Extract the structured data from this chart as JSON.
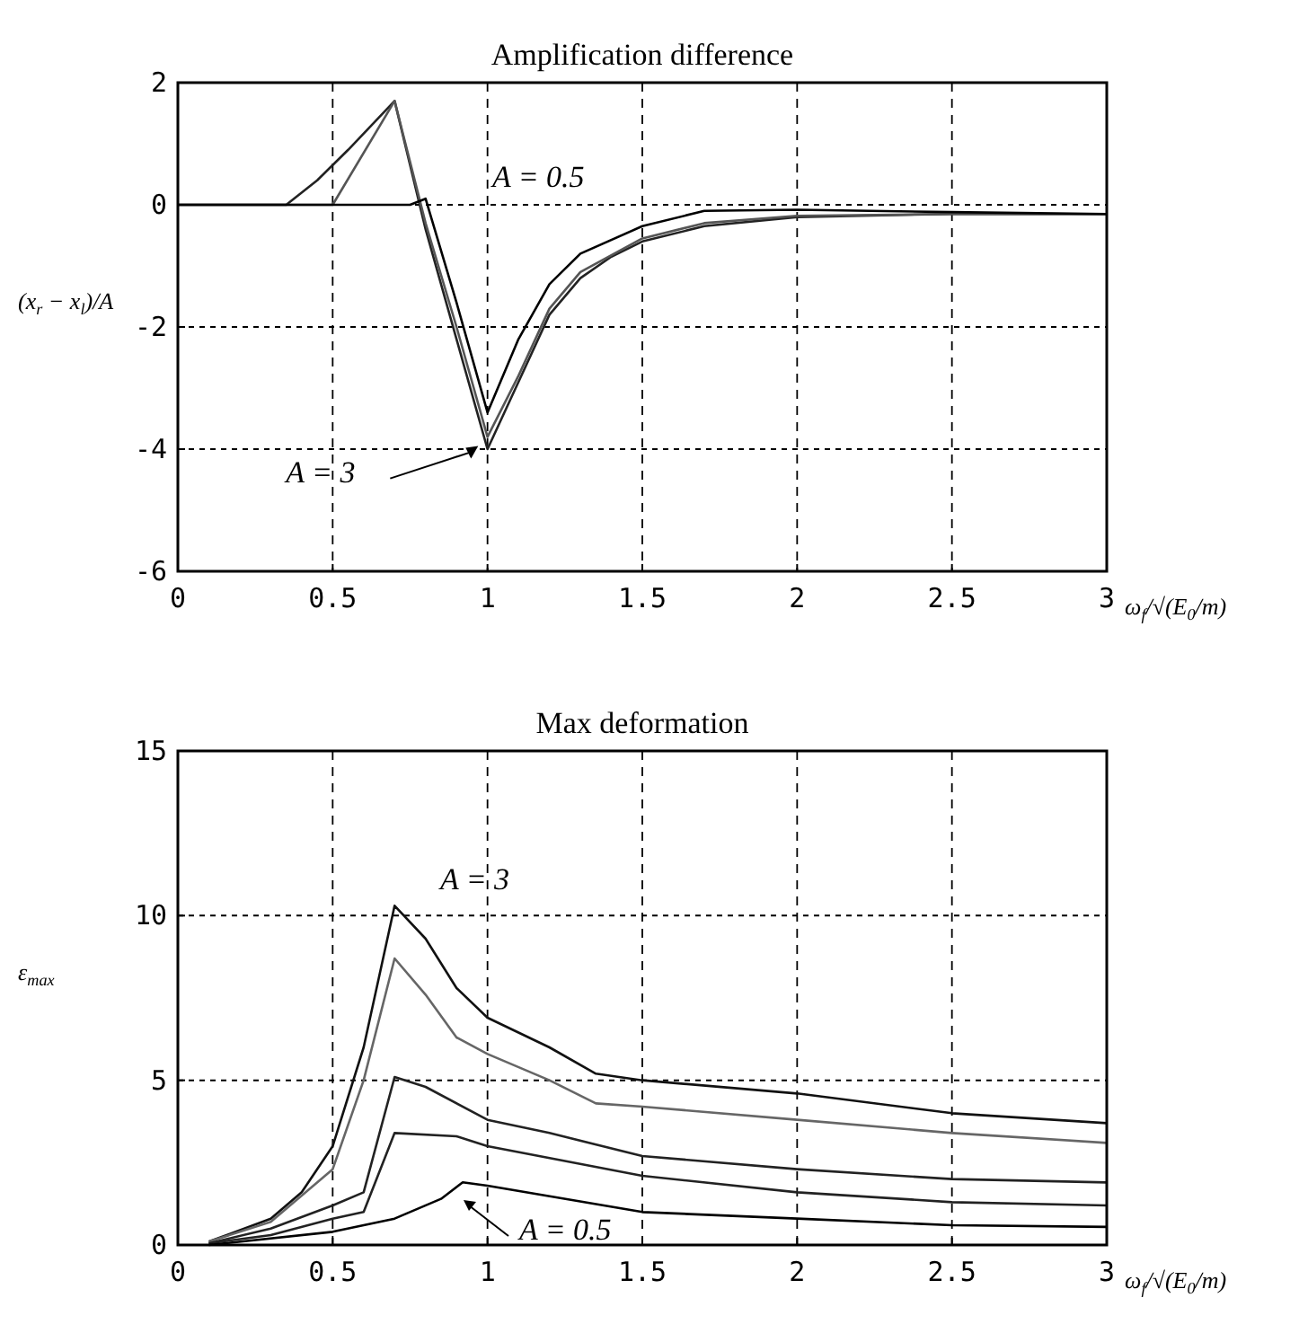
{
  "chart_data": [
    {
      "type": "line",
      "title": "Amplification difference",
      "xlabel": "ω$_{f}$/√(E$_{0}$/m)",
      "ylabel": "(x$_{r}$ − x$_{l}$)/A",
      "xlim": [
        0,
        3
      ],
      "ylim": [
        -6,
        2
      ],
      "xticks": [
        0,
        0.5,
        1,
        1.5,
        2,
        2.5,
        3
      ],
      "yticks": [
        -6,
        -4,
        -2,
        0,
        2
      ],
      "grid": true,
      "line_style": "solid",
      "marker": "none",
      "annotations": [
        "A = 0.5",
        {
          "text": "A = 3",
          "x": 0.97,
          "y": -3.95
        }
      ],
      "series": [
        {
          "color": "#222222",
          "x": [
            0,
            0.35,
            0.45,
            0.55,
            0.7,
            0.8,
            0.9,
            1.0,
            1.1,
            1.2,
            1.3,
            1.4,
            1.5,
            1.7,
            2.0,
            2.5,
            3.0
          ],
          "values": [
            0,
            0,
            0.4,
            0.9,
            1.7,
            -0.4,
            -2.2,
            -4.0,
            -2.9,
            -1.8,
            -1.2,
            -0.85,
            -0.6,
            -0.35,
            -0.2,
            -0.15,
            -0.15
          ]
        },
        {
          "color": "#555555",
          "x": [
            0,
            0.5,
            0.7,
            0.8,
            0.9,
            1.0,
            1.1,
            1.2,
            1.3,
            1.5,
            1.7,
            2.0,
            2.5,
            3.0
          ],
          "values": [
            0,
            0,
            1.7,
            -0.3,
            -2.0,
            -3.8,
            -2.8,
            -1.7,
            -1.1,
            -0.55,
            -0.3,
            -0.18,
            -0.15,
            -0.15
          ]
        },
        {
          "color": "#000000",
          "x": [
            0,
            0.75,
            0.8,
            0.9,
            1.0,
            1.1,
            1.2,
            1.3,
            1.5,
            1.7,
            2.0,
            2.5,
            3.0
          ],
          "values": [
            0,
            0,
            0.1,
            -1.6,
            -3.4,
            -2.2,
            -1.3,
            -0.8,
            -0.35,
            -0.1,
            -0.08,
            -0.12,
            -0.15
          ]
        }
      ]
    },
    {
      "type": "line",
      "title": "Max deformation",
      "xlabel": "ω$_{f}$/√(E$_{0}$/m)",
      "ylabel": "ε$_{max}$",
      "xlim": [
        0,
        3
      ],
      "ylim": [
        0,
        15
      ],
      "xticks": [
        0,
        0.5,
        1,
        1.5,
        2,
        2.5,
        3
      ],
      "yticks": [
        0,
        5,
        10,
        15
      ],
      "grid": true,
      "line_style": "solid",
      "marker": "none",
      "annotations": [
        "A = 3",
        "A = 0.5"
      ],
      "series": [
        {
          "color": "#111111",
          "x": [
            0.1,
            0.3,
            0.4,
            0.5,
            0.6,
            0.7,
            0.8,
            0.9,
            1.0,
            1.2,
            1.35,
            1.5,
            2.0,
            2.5,
            3.0
          ],
          "values": [
            0.1,
            0.8,
            1.6,
            3.0,
            6.0,
            10.3,
            9.3,
            7.8,
            6.9,
            6.0,
            5.2,
            5.0,
            4.6,
            4.0,
            3.7
          ]
        },
        {
          "color": "#666666",
          "x": [
            0.1,
            0.3,
            0.5,
            0.6,
            0.7,
            0.8,
            0.9,
            1.0,
            1.2,
            1.35,
            1.5,
            2.0,
            2.5,
            3.0
          ],
          "values": [
            0.1,
            0.7,
            2.3,
            5.0,
            8.7,
            7.6,
            6.3,
            5.8,
            5.0,
            4.3,
            4.2,
            3.8,
            3.4,
            3.1
          ]
        },
        {
          "color": "#222222",
          "x": [
            0.1,
            0.3,
            0.5,
            0.6,
            0.7,
            0.8,
            1.0,
            1.2,
            1.5,
            2.0,
            2.5,
            3.0
          ],
          "values": [
            0.05,
            0.5,
            1.2,
            1.6,
            5.1,
            4.8,
            3.8,
            3.4,
            2.7,
            2.3,
            2.0,
            1.9
          ]
        },
        {
          "color": "#222222",
          "x": [
            0.1,
            0.3,
            0.5,
            0.6,
            0.7,
            0.9,
            1.0,
            1.5,
            2.0,
            2.5,
            3.0
          ],
          "values": [
            0.05,
            0.3,
            0.8,
            1.0,
            3.4,
            3.3,
            3.0,
            2.1,
            1.6,
            1.3,
            1.2
          ]
        },
        {
          "color": "#000000",
          "x": [
            0.1,
            0.5,
            0.7,
            0.85,
            0.92,
            1.0,
            1.5,
            2.0,
            2.5,
            3.0
          ],
          "values": [
            0,
            0.4,
            0.8,
            1.4,
            1.9,
            1.8,
            1.0,
            0.8,
            0.6,
            0.55
          ]
        }
      ]
    }
  ]
}
